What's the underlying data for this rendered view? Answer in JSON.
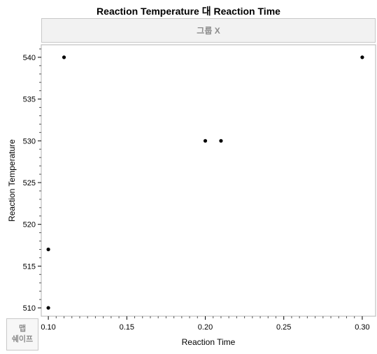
{
  "chart_data": {
    "type": "scatter",
    "title": "Reaction Temperature 대 Reaction Time",
    "xlabel": "Reaction Time",
    "ylabel": "Reaction Temperature",
    "xlim": [
      0.0955,
      0.3085
    ],
    "ylim": [
      509,
      541.5
    ],
    "x_ticks": [
      0.1,
      0.15,
      0.2,
      0.25,
      0.3
    ],
    "x_tick_labels": [
      "0.10",
      "0.15",
      "0.20",
      "0.25",
      "0.30"
    ],
    "y_ticks": [
      510,
      515,
      520,
      525,
      530,
      535,
      540
    ],
    "y_tick_labels": [
      "510",
      "515",
      "520",
      "525",
      "530",
      "535",
      "540"
    ],
    "grid": false,
    "points": [
      {
        "x": 0.1,
        "y": 510
      },
      {
        "x": 0.1,
        "y": 517
      },
      {
        "x": 0.11,
        "y": 540
      },
      {
        "x": 0.2,
        "y": 530
      },
      {
        "x": 0.21,
        "y": 530
      },
      {
        "x": 0.3,
        "y": 540
      }
    ]
  },
  "group_x_label": "그룹 X",
  "map_shape_label": [
    "맵",
    "쉐이프"
  ],
  "colors": {
    "point": "#000000",
    "panel_border": "#c8c8c8",
    "panel_fill": "#f2f2f2",
    "panel_text": "#8c8c8c"
  }
}
